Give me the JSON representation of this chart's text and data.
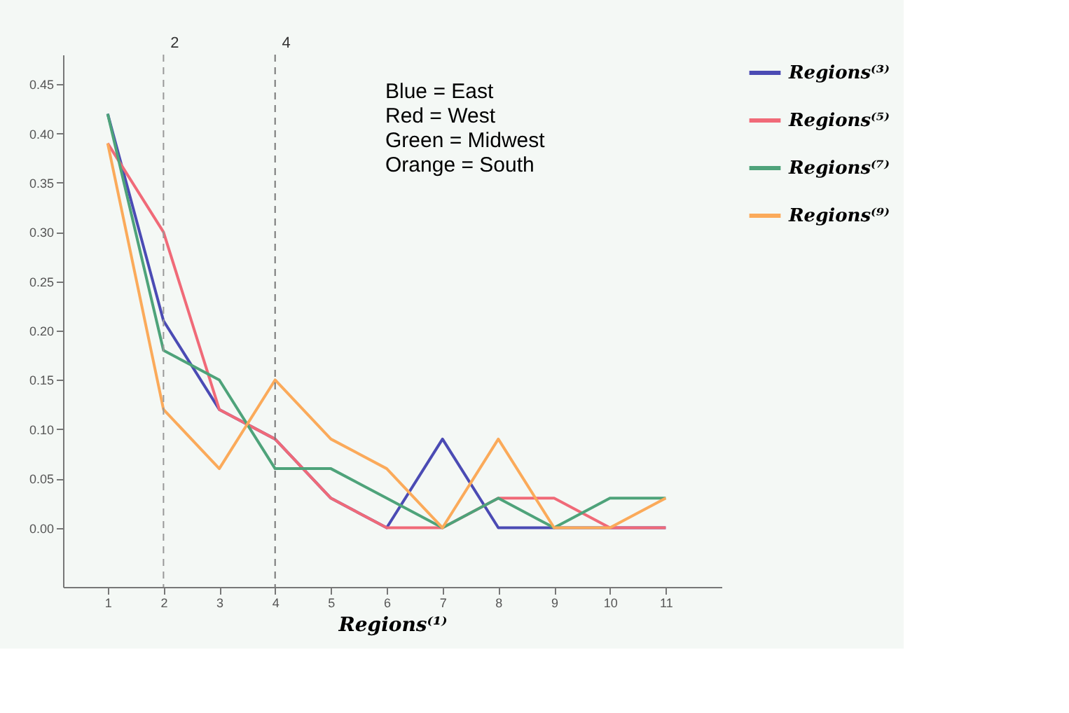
{
  "chart_data": {
    "type": "line",
    "xlabel": "Regions⁽¹⁾",
    "x": [
      1,
      2,
      3,
      4,
      5,
      6,
      7,
      8,
      9,
      10,
      11
    ],
    "series": [
      {
        "name": "Regions⁽³⁾",
        "color": "#4b4bb4",
        "values": [
          0.42,
          0.21,
          0.12,
          0.09,
          0.03,
          0,
          0.09,
          0,
          0,
          0,
          0
        ]
      },
      {
        "name": "Regions⁽⁵⁾",
        "color": "#f06a78",
        "values": [
          0.39,
          0.3,
          0.12,
          0.09,
          0.03,
          0,
          0,
          0.03,
          0.03,
          0,
          0
        ]
      },
      {
        "name": "Regions⁽⁷⁾",
        "color": "#4ea37a",
        "values": [
          0.42,
          0.18,
          0.15,
          0.06,
          0.06,
          0.03,
          0,
          0.03,
          0,
          0.03,
          0.03
        ]
      },
      {
        "name": "Regions⁽⁹⁾",
        "color": "#fbaa5a",
        "values": [
          0.39,
          0.12,
          0.06,
          0.15,
          0.09,
          0.06,
          0,
          0.09,
          0,
          0,
          0.03
        ]
      }
    ],
    "xlim": [
      0.2,
      12
    ],
    "xticks": [
      1,
      2,
      3,
      4,
      5,
      6,
      7,
      8,
      9,
      10,
      11
    ],
    "ylim": [
      -0.06,
      0.48
    ],
    "yticks": [
      {
        "value": 0,
        "label": "0.00"
      },
      {
        "value": 0.05,
        "label": "0.05"
      },
      {
        "value": 0.1,
        "label": "0.10"
      },
      {
        "value": 0.15,
        "label": "0.15"
      },
      {
        "value": 0.2,
        "label": "0.20"
      },
      {
        "value": 0.25,
        "label": "0.25"
      },
      {
        "value": 0.3,
        "label": "0.30"
      },
      {
        "value": 0.35,
        "label": "0.35"
      },
      {
        "value": 0.4,
        "label": "0.40"
      },
      {
        "value": 0.45,
        "label": "0.45"
      }
    ],
    "ref_lines": [
      {
        "axis": "x",
        "value": 2,
        "label": "2",
        "color": "#999999",
        "line_style": "dashed"
      },
      {
        "axis": "x",
        "value": 4,
        "label": "4",
        "color": "#777777",
        "line_style": "dashed"
      }
    ],
    "annotations": [
      "Blue = East",
      "Red = West",
      "Green = Midwest",
      "Orange = South"
    ],
    "legend": "right",
    "grid": false,
    "marker": "none",
    "line_style": "solid"
  }
}
